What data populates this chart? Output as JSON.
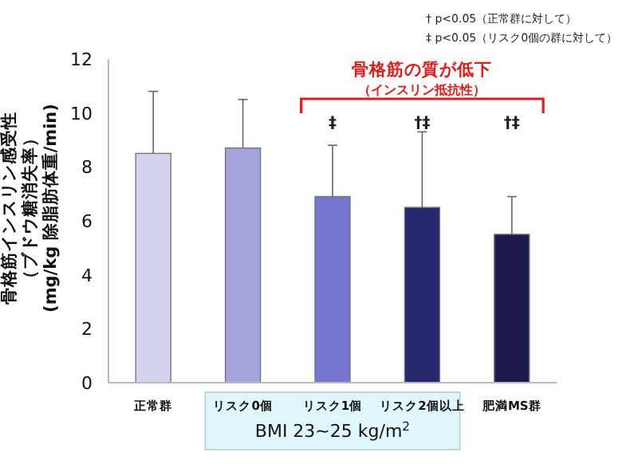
{
  "chart_data": {
    "type": "bar",
    "ylabel": "骨格筋インスリン感受性",
    "categories": [
      "正常群",
      "リスク0個",
      "リスク1個",
      "リスク2個以上",
      "肥満MS群"
    ],
    "values": [
      8.5,
      8.7,
      6.9,
      6.5,
      5.5
    ],
    "errors": [
      [
        8.5,
        10.8
      ],
      [
        8.7,
        10.5
      ],
      [
        6.9,
        8.8
      ],
      [
        6.5,
        9.3
      ],
      [
        5.5,
        6.9
      ]
    ],
    "colors": [
      "#d3d3ee",
      "#a5a3dc",
      "#7674cc",
      "#27286e",
      "#1c1a4c"
    ],
    "ylim": [
      0,
      12
    ],
    "yticks": [
      0,
      2,
      4,
      6,
      8,
      10,
      12
    ],
    "grid": false,
    "annotations": [
      "† p<0.05（正常群に対して）",
      "‡ p<0.05（リスク0個の群に対して）",
      "骨格筋の質が低下",
      "（インスリン抵抗性）",
      "BMI 23~25 kg/m$^{2}$",
      "‡",
      "†‡",
      "†‡",
      "（ブドウ糖消失率）",
      "(mg/kg 除脂肪体重/min)"
    ]
  }
}
